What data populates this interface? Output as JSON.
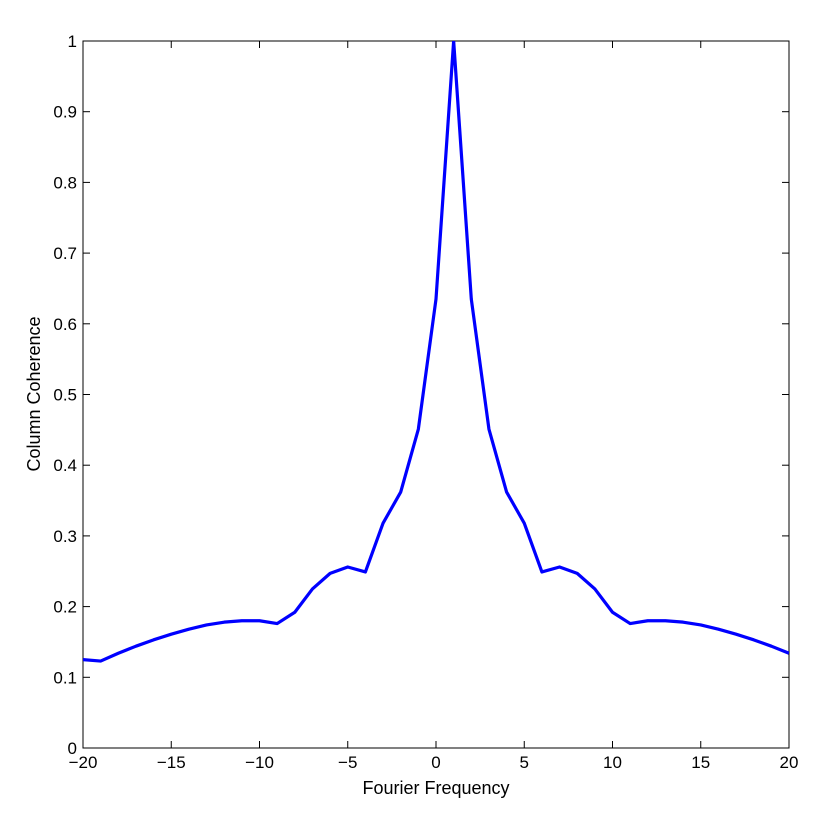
{
  "chart_data": {
    "type": "line",
    "title": "",
    "xlabel": "Fourier Frequency",
    "ylabel": "Column Coherence",
    "xlim": [
      -20,
      20
    ],
    "ylim": [
      0,
      1
    ],
    "x_ticks": [
      -20,
      -15,
      -10,
      -5,
      0,
      5,
      10,
      15,
      20
    ],
    "x_tick_labels": [
      "−20",
      "−15",
      "−10",
      "−5",
      "0",
      "5",
      "10",
      "15",
      "20"
    ],
    "y_ticks": [
      0,
      0.1,
      0.2,
      0.3,
      0.4,
      0.5,
      0.6,
      0.7,
      0.8,
      0.9,
      1
    ],
    "y_tick_labels": [
      "0",
      "0.1",
      "0.2",
      "0.3",
      "0.4",
      "0.5",
      "0.6",
      "0.7",
      "0.8",
      "0.9",
      "1"
    ],
    "grid": false,
    "series": [
      {
        "color": "#0000ff",
        "x": [
          -20,
          -19,
          -18,
          -17,
          -16,
          -15,
          -14,
          -13,
          -12,
          -11,
          -10,
          -9,
          -8,
          -7,
          -6,
          -5,
          -4,
          -3,
          -2,
          -1,
          0,
          1,
          2,
          3,
          4,
          5,
          6,
          7,
          8,
          9,
          10,
          11,
          12,
          13,
          14,
          15,
          16,
          17,
          18,
          19,
          20
        ],
        "y": [
          0.125,
          0.123,
          0.134,
          0.144,
          0.153,
          0.161,
          0.168,
          0.174,
          0.178,
          0.18,
          0.18,
          0.176,
          0.192,
          0.225,
          0.247,
          0.256,
          0.249,
          0.318,
          0.362,
          0.451,
          0.635,
          1.0,
          0.635,
          0.451,
          0.362,
          0.318,
          0.249,
          0.256,
          0.247,
          0.225,
          0.192,
          0.176,
          0.18,
          0.18,
          0.178,
          0.174,
          0.168,
          0.161,
          0.153,
          0.144,
          0.134
        ]
      }
    ]
  }
}
